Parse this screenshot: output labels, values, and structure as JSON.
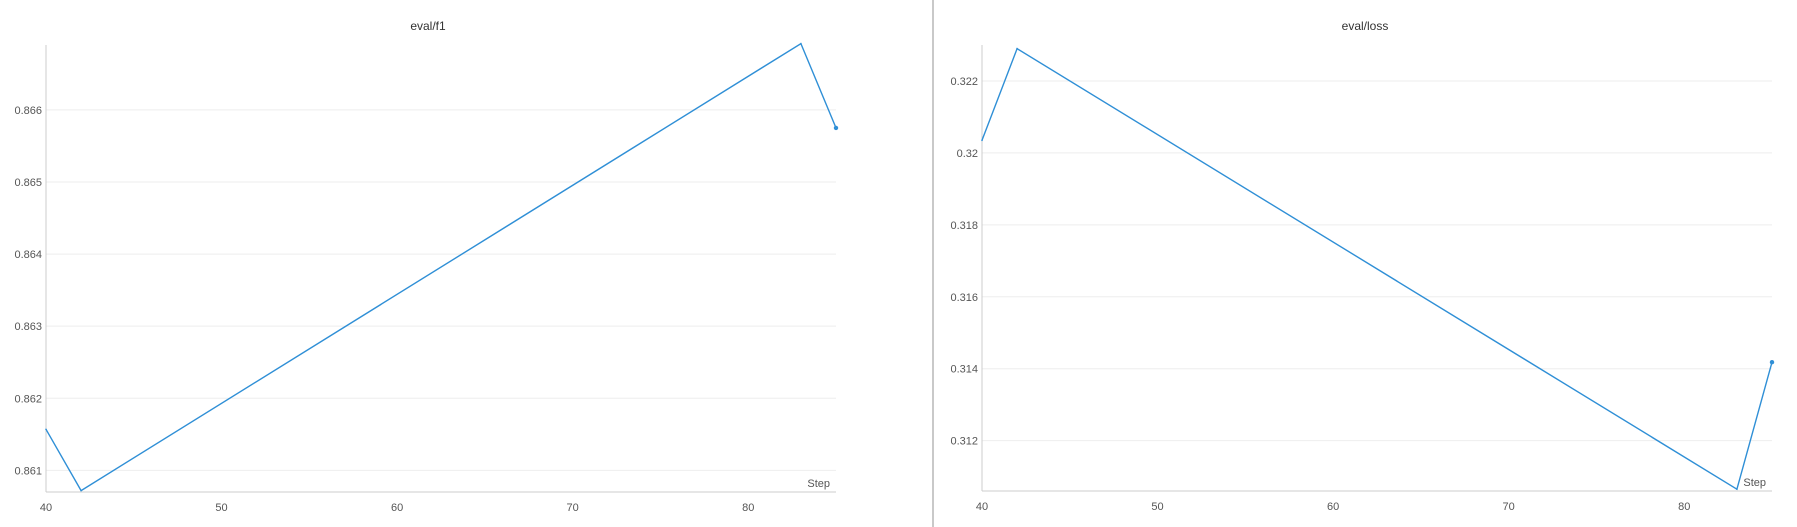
{
  "charts": [
    {
      "title": "eval/f1",
      "xlabel": "Step",
      "ylabel": "",
      "type": "line",
      "xlim": [
        40,
        85
      ],
      "ylim": [
        0.8607,
        0.8669
      ],
      "xticks": [
        40,
        50,
        60,
        70,
        80
      ],
      "yticks": [
        0.861,
        0.862,
        0.863,
        0.864,
        0.865,
        0.866
      ],
      "ytick_labels": [
        "0.861",
        "0.862",
        "0.863",
        "0.864",
        "0.865",
        "0.866"
      ],
      "grid": true,
      "color": "#2f8fd6",
      "points": [
        [
          40,
          0.86157
        ],
        [
          42,
          0.86072
        ],
        [
          83,
          0.86692
        ],
        [
          85,
          0.86575
        ]
      ]
    },
    {
      "title": "eval/loss",
      "xlabel": "Step",
      "ylabel": "",
      "type": "line",
      "xlim": [
        40,
        85
      ],
      "ylim": [
        0.3106,
        0.323
      ],
      "xticks": [
        40,
        50,
        60,
        70,
        80
      ],
      "yticks": [
        0.312,
        0.314,
        0.316,
        0.318,
        0.32,
        0.322
      ],
      "ytick_labels": [
        "0.312",
        "0.314",
        "0.316",
        "0.318",
        "0.32",
        "0.322"
      ],
      "grid": true,
      "color": "#2f8fd6",
      "points": [
        [
          40,
          0.32035
        ],
        [
          42,
          0.3229
        ],
        [
          83,
          0.31065
        ],
        [
          85,
          0.31418
        ]
      ]
    }
  ],
  "chart_data": [
    {
      "type": "line",
      "title": "eval/f1",
      "xlabel": "Step",
      "ylabel": "",
      "x": [
        40,
        42,
        83,
        85
      ],
      "series": [
        {
          "values": [
            0.86157,
            0.86072,
            0.86692,
            0.86575
          ]
        }
      ],
      "xlim": [
        40,
        85
      ],
      "ylim": [
        0.8607,
        0.8669
      ],
      "grid": true,
      "legend": "none"
    },
    {
      "type": "line",
      "title": "eval/loss",
      "xlabel": "Step",
      "ylabel": "",
      "x": [
        40,
        42,
        83,
        85
      ],
      "series": [
        {
          "values": [
            0.32035,
            0.3229,
            0.31065,
            0.31418
          ]
        }
      ],
      "xlim": [
        40,
        85
      ],
      "ylim": [
        0.3106,
        0.323
      ],
      "grid": true,
      "legend": "none"
    }
  ]
}
